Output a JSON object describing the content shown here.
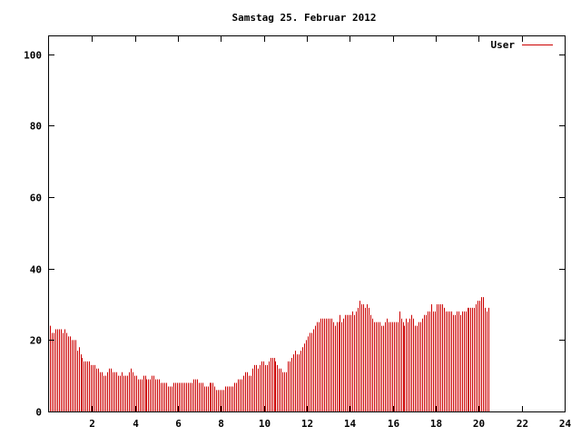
{
  "chart_data": {
    "type": "bar",
    "title": "Samstag 25. Februar 2012",
    "xlabel": "",
    "ylabel": "",
    "xlim": [
      0,
      24
    ],
    "ylim": [
      0,
      105
    ],
    "xticks": [
      "2",
      "4",
      "6",
      "8",
      "10",
      "12",
      "14",
      "16",
      "18",
      "20",
      "22",
      "24"
    ],
    "yticks": [
      "0",
      "20",
      "40",
      "60",
      "80",
      "100"
    ],
    "grid": false,
    "legend_position": "top-right",
    "series": [
      {
        "name": "User",
        "color": "#cc0000",
        "sample_interval_minutes": 5,
        "values": [
          24,
          22,
          22,
          23,
          23,
          23,
          23,
          22,
          23,
          22,
          21,
          21,
          20,
          20,
          20,
          17,
          18,
          16,
          15,
          14,
          14,
          14,
          14,
          13,
          13,
          13,
          12,
          12,
          11,
          11,
          10,
          10,
          11,
          12,
          12,
          11,
          11,
          11,
          10,
          10,
          11,
          10,
          10,
          10,
          11,
          12,
          11,
          10,
          10,
          9,
          9,
          9,
          10,
          10,
          9,
          9,
          9,
          10,
          10,
          9,
          9,
          9,
          8,
          8,
          8,
          8,
          7,
          7,
          7,
          8,
          8,
          8,
          8,
          8,
          8,
          8,
          8,
          8,
          8,
          8,
          9,
          9,
          9,
          8,
          8,
          8,
          7,
          7,
          7,
          8,
          8,
          8,
          7,
          6,
          6,
          6,
          6,
          6,
          7,
          7,
          7,
          7,
          7,
          8,
          8,
          9,
          9,
          9,
          10,
          11,
          11,
          10,
          10,
          12,
          13,
          13,
          12,
          13,
          14,
          14,
          13,
          13,
          14,
          15,
          15,
          15,
          14,
          13,
          12,
          12,
          11,
          11,
          11,
          14,
          14,
          15,
          16,
          17,
          16,
          16,
          17,
          18,
          19,
          20,
          21,
          22,
          22,
          23,
          24,
          25,
          25,
          26,
          26,
          26,
          26,
          26,
          26,
          26,
          25,
          24,
          25,
          25,
          27,
          25,
          26,
          27,
          27,
          27,
          27,
          28,
          27,
          28,
          29,
          31,
          30,
          30,
          29,
          30,
          29,
          27,
          26,
          25,
          25,
          25,
          25,
          24,
          24,
          25,
          26,
          25,
          25,
          25,
          25,
          25,
          25,
          28,
          26,
          25,
          24,
          26,
          25,
          26,
          27,
          26,
          24,
          24,
          25,
          25,
          26,
          27,
          27,
          28,
          28,
          30,
          28,
          28,
          30,
          30,
          30,
          30,
          29,
          28,
          28,
          28,
          28,
          27,
          27,
          28,
          28,
          27,
          28,
          28,
          28,
          29,
          29,
          29,
          29,
          29,
          30,
          31,
          31,
          32,
          32,
          29,
          28,
          29
        ]
      }
    ]
  }
}
